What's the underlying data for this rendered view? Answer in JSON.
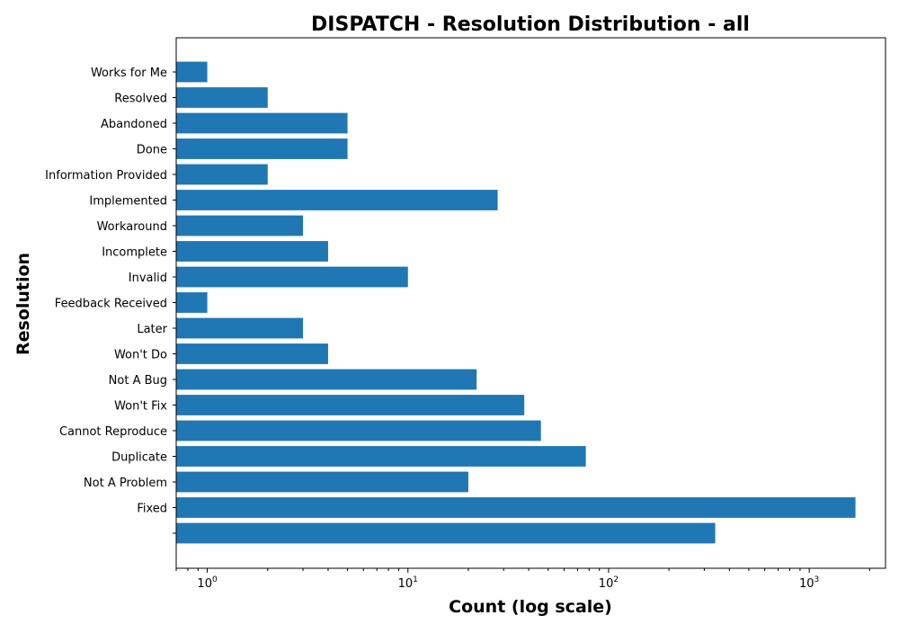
{
  "chart_data": {
    "type": "bar",
    "orientation": "horizontal",
    "title": "DISPATCH - Resolution Distribution - all",
    "xlabel": "Count (log scale)",
    "ylabel": "Resolution",
    "xscale": "log",
    "xlim": [
      0.7,
      2400
    ],
    "x_ticks": [
      {
        "value": 1,
        "base": "10",
        "exp": "0"
      },
      {
        "value": 10,
        "base": "10",
        "exp": "1"
      },
      {
        "value": 100,
        "base": "10",
        "exp": "2"
      },
      {
        "value": 1000,
        "base": "10",
        "exp": "3"
      }
    ],
    "categories": [
      "",
      "Fixed",
      "Not A Problem",
      "Duplicate",
      "Cannot Reproduce",
      "Won't Fix",
      "Not A Bug",
      "Won't Do",
      "Later",
      "Feedback Received",
      "Invalid",
      "Incomplete",
      "Workaround",
      "Implemented",
      "Information Provided",
      "Done",
      "Abandoned",
      "Resolved",
      "Works for Me"
    ],
    "values": [
      340,
      1700,
      20,
      77,
      46,
      38,
      22,
      4,
      3,
      1,
      10,
      4,
      3,
      28,
      2,
      5,
      5,
      2,
      1
    ],
    "bar_color": "#1f77b4",
    "grid": false,
    "legend": "none"
  }
}
